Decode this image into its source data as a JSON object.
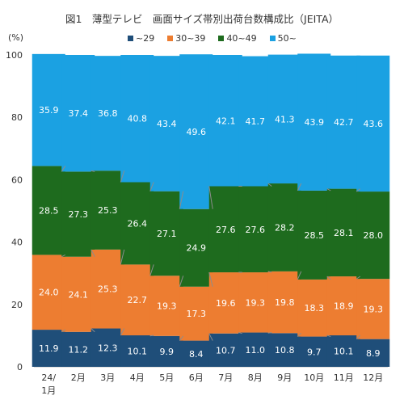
{
  "title": "図1　薄型テレビ　画面サイズ帯別出荷台数構成比（JEITA）",
  "y_unit": "(%)",
  "colors": {
    "~29": "#1f4e79",
    "30~39": "#ed7d31",
    "40~49": "#1e6b1e",
    "50~": "#1ba1e2"
  },
  "chart_data": {
    "type": "bar",
    "stacked": true,
    "title": "図1　薄型テレビ　画面サイズ帯別出荷台数構成比（JEITA）",
    "ylabel": "(%)",
    "ylim": [
      0,
      100
    ],
    "yticks": [
      0,
      20,
      40,
      60,
      80,
      100
    ],
    "grid": false,
    "legend_position": "top",
    "categories": [
      "24/\n1月",
      "2月",
      "3月",
      "4月",
      "5月",
      "6月",
      "7月",
      "8月",
      "9月",
      "10月",
      "11月",
      "12月"
    ],
    "series": [
      {
        "name": "~29",
        "values": [
          11.9,
          11.2,
          12.3,
          10.1,
          9.9,
          8.4,
          10.7,
          11.0,
          10.8,
          9.7,
          10.1,
          8.9
        ]
      },
      {
        "name": "30~39",
        "values": [
          24.0,
          24.1,
          25.3,
          22.7,
          19.3,
          17.3,
          19.6,
          19.3,
          19.8,
          18.3,
          18.9,
          19.3
        ]
      },
      {
        "name": "40~49",
        "values": [
          28.5,
          27.3,
          25.3,
          26.4,
          27.1,
          24.9,
          27.6,
          27.6,
          28.2,
          28.5,
          28.1,
          28.0
        ]
      },
      {
        "name": "50~",
        "values": [
          35.9,
          37.4,
          36.8,
          40.8,
          43.4,
          49.6,
          42.1,
          41.7,
          41.3,
          43.9,
          42.7,
          43.6
        ]
      }
    ]
  }
}
